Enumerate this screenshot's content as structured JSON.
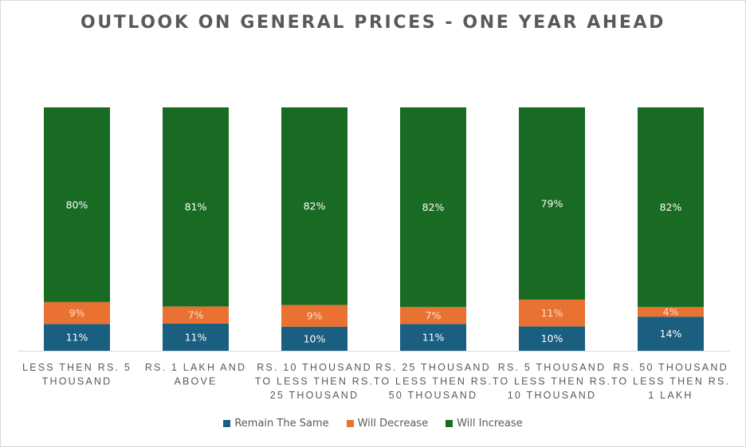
{
  "chart_data": {
    "type": "bar",
    "stacked": true,
    "percent_stacked": true,
    "title": "OUTLOOK ON GENERAL PRICES - ONE YEAR AHEAD",
    "xlabel": "",
    "ylabel": "",
    "ylim": [
      0,
      100
    ],
    "grid": false,
    "legend_position": "bottom",
    "categories": [
      [
        "LESS THEN RS. 5",
        "THOUSAND"
      ],
      [
        "RS. 1 LAKH AND",
        "ABOVE"
      ],
      [
        "RS. 10 THOUSAND",
        "TO LESS THEN RS.",
        "25 THOUSAND"
      ],
      [
        "RS. 25 THOUSAND",
        "TO LESS THEN RS.",
        "50 THOUSAND"
      ],
      [
        "RS. 5 THOUSAND",
        "TO LESS THEN RS.",
        "10 THOUSAND"
      ],
      [
        "RS. 50 THOUSAND",
        "TO LESS THEN RS.",
        "1 LAKH"
      ]
    ],
    "series": [
      {
        "name": "Remain The Same",
        "color": "#1a5e80",
        "values": [
          11,
          11,
          10,
          11,
          10,
          14
        ],
        "labels": [
          "11%",
          "11%",
          "10%",
          "11%",
          "10%",
          "14%"
        ]
      },
      {
        "name": "Will Decrease",
        "color": "#e97132",
        "values": [
          9,
          7,
          9,
          7,
          11,
          4
        ],
        "labels": [
          "9%",
          "7%",
          "9%",
          "7%",
          "11%",
          "4%"
        ]
      },
      {
        "name": "Will Increase",
        "color": "#196b24",
        "values": [
          80,
          81,
          82,
          82,
          79,
          82
        ],
        "labels": [
          "80%",
          "81%",
          "82%",
          "82%",
          "79%",
          "82%"
        ]
      }
    ]
  }
}
